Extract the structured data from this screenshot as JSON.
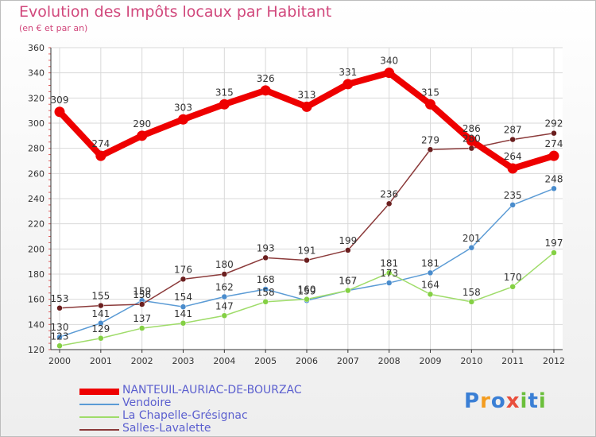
{
  "title": "Evolution des Impôts locaux par Habitant",
  "subtitle": "(en € et par an)",
  "logo": {
    "text": "Proxiti",
    "letters": [
      "P",
      "r",
      "o",
      "x",
      "i",
      "t",
      "i"
    ],
    "colors": [
      "#3a7fd5",
      "#f39c1f",
      "#3a7fd5",
      "#e94e3c",
      "#6bbf3b",
      "#3a7fd5",
      "#6bbf3b"
    ]
  },
  "chart_data": {
    "type": "line",
    "title": "Evolution des Impôts locaux par Habitant",
    "ylabel": "(en € et par an)",
    "xlabel": "",
    "ylim": [
      120,
      360
    ],
    "yticks": [
      120,
      140,
      160,
      180,
      200,
      220,
      240,
      260,
      280,
      300,
      320,
      340,
      360
    ],
    "grid": true,
    "x": [
      "2000",
      "2001",
      "2002",
      "2003",
      "2004",
      "2005",
      "2006",
      "2007",
      "2008",
      "2009",
      "2010",
      "2011",
      "2012"
    ],
    "series": [
      {
        "name": "NANTEUIL-AURIAC-DE-BOURZAC",
        "color": "#ee0000",
        "marker": "#ee0000",
        "thick": true,
        "values": [
          309,
          274,
          290,
          303,
          315,
          326,
          313,
          331,
          340,
          315,
          286,
          264,
          274
        ]
      },
      {
        "name": "Vendoire",
        "color": "#5b9bd5",
        "marker": "#4a8ccc",
        "thick": false,
        "values": [
          130,
          141,
          159,
          154,
          162,
          168,
          159,
          167,
          173,
          181,
          201,
          235,
          248
        ]
      },
      {
        "name": "La Chapelle-Grésignac",
        "color": "#9fdc6a",
        "marker": "#84d044",
        "thick": false,
        "values": [
          123,
          129,
          137,
          141,
          147,
          158,
          160,
          167,
          181,
          164,
          158,
          170,
          197
        ]
      },
      {
        "name": "Salles-Lavalette",
        "color": "#8b3a3a",
        "marker": "#6b1f1f",
        "thick": false,
        "values": [
          153,
          155,
          156,
          176,
          180,
          193,
          191,
          199,
          236,
          279,
          280,
          287,
          292
        ]
      }
    ]
  }
}
